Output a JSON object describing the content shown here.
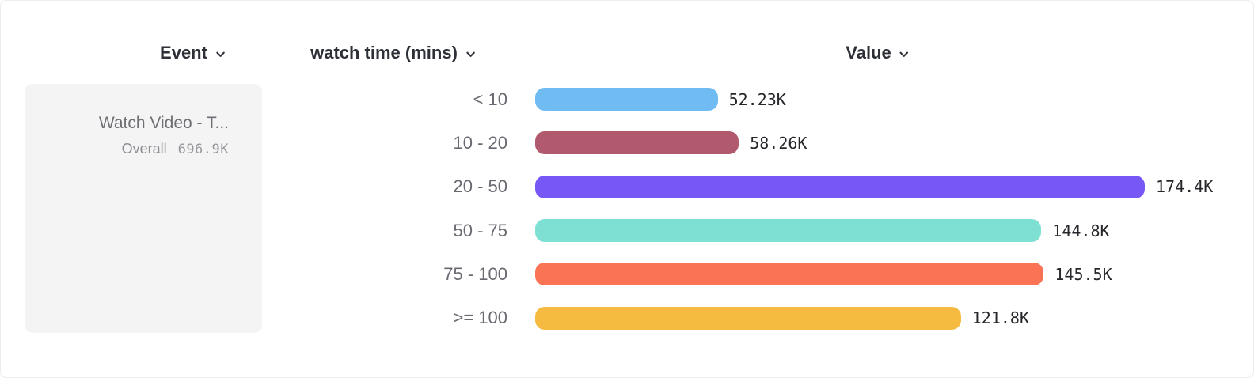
{
  "header": {
    "columns": [
      {
        "label": "Event",
        "icon": "chevron-down-icon"
      },
      {
        "label": "watch time (mins)",
        "icon": "chevron-down-icon"
      },
      {
        "label": "Value",
        "icon": "chevron-down-icon"
      }
    ]
  },
  "legend": {
    "event_name": "Watch Video - T...",
    "overall_label": "Overall",
    "overall_value": "696.9K"
  },
  "chart_data": {
    "type": "bar",
    "orientation": "horizontal",
    "title": "",
    "xlabel": "Value",
    "ylabel": "watch time (mins)",
    "categories": [
      "< 10",
      "10 - 20",
      "20 - 50",
      "50 - 75",
      "75 - 100",
      ">= 100"
    ],
    "values": [
      52.23,
      58.26,
      174.4,
      144.8,
      145.5,
      121.8
    ],
    "unit": "K",
    "value_labels": [
      "52.23K",
      "58.26K",
      "174.4K",
      "144.8K",
      "145.5K",
      "121.8K"
    ],
    "bar_colors": [
      "#6fbbf2",
      "#b15a6d",
      "#7857f7",
      "#7edfd3",
      "#fb7355",
      "#f5ba40"
    ],
    "xlim": [
      0,
      174.4
    ],
    "grid": false,
    "legend_position": "left"
  },
  "colors": {
    "header_text": "#2e3038",
    "category_text": "#696971",
    "value_text": "#26262b",
    "legend_bg": "#f4f4f5",
    "legend_text": "#6e6e74",
    "background": "#ffffff"
  }
}
